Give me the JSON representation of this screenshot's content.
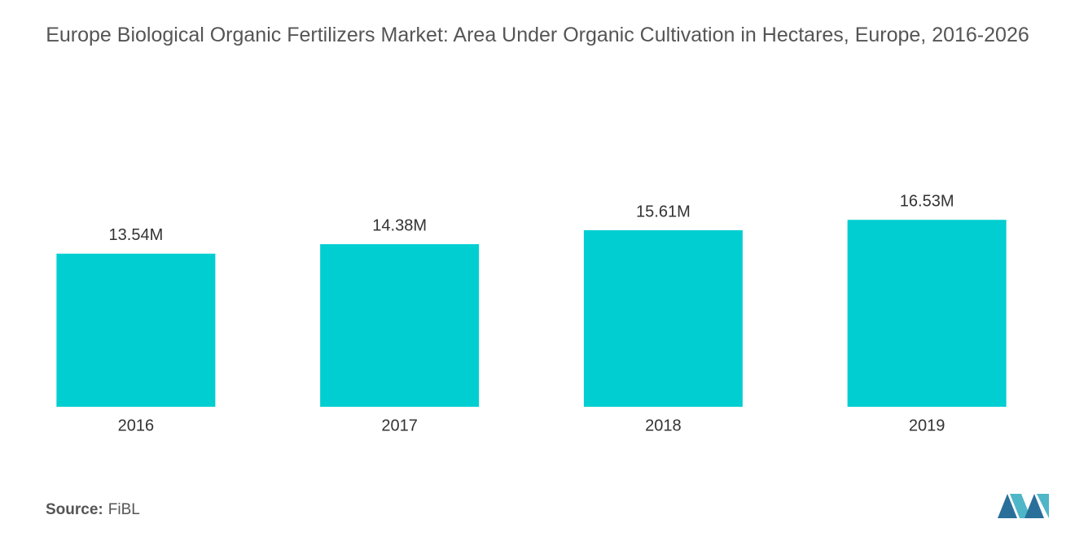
{
  "chart_data": {
    "type": "bar",
    "title": "Europe Biological Organic Fertilizers Market: Area Under Organic Cultivation in Hectares, Europe, 2016-2026",
    "categories": [
      "2016",
      "2017",
      "2018",
      "2019"
    ],
    "values": [
      13.54,
      14.38,
      15.61,
      16.53
    ],
    "value_labels": [
      "13.54M",
      "14.38M",
      "15.61M",
      "16.53M"
    ],
    "color": "#00ced1",
    "source_label": "Source:",
    "source": "FiBL"
  }
}
